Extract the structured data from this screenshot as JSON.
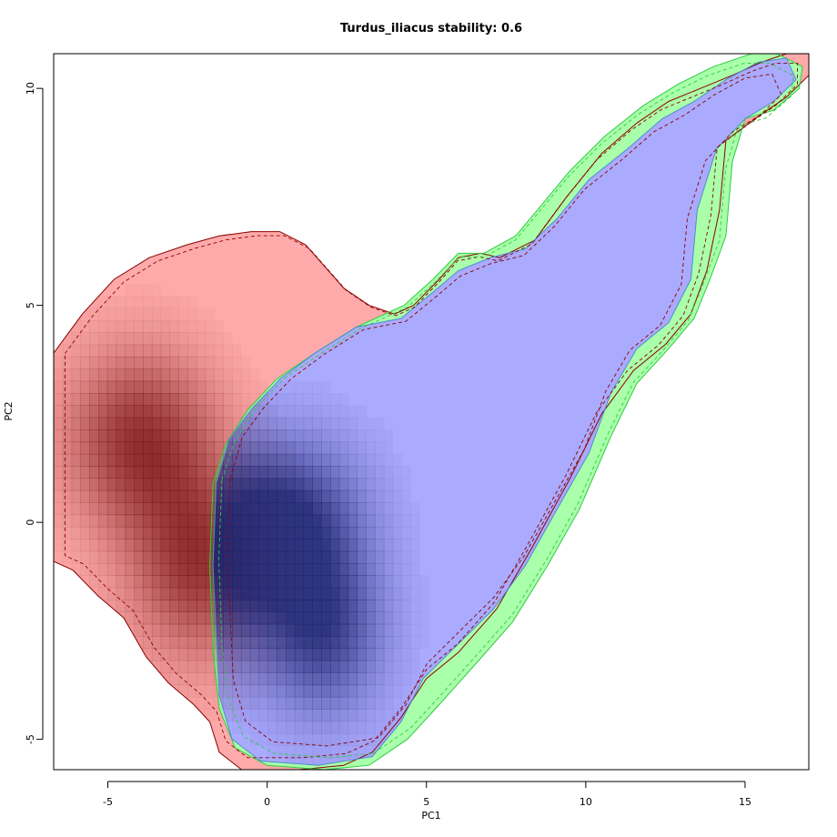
{
  "chart_data": {
    "type": "area",
    "title": "Turdus_iliacus stability: 0.6",
    "xlabel": "PC1",
    "ylabel": "PC2",
    "xlim": [
      -6.7,
      17.0
    ],
    "ylim": [
      -5.7,
      10.8
    ],
    "xticks": [
      -5,
      0,
      5,
      10,
      15
    ],
    "yticks": [
      -5,
      0,
      5,
      10
    ],
    "colors": {
      "region_a": "#ffaaaa",
      "region_b": "#aaffaa",
      "overlap": "#aaaaff",
      "density_a": "#7a1414",
      "density_b": "#1e246e",
      "contour_a": "#8b0000",
      "contour_b": "#2ecc40",
      "contour_overlap": "#4a90c8"
    },
    "series": [
      {
        "role": "region_a",
        "polygon": [
          [
            -6.7,
            3.9
          ],
          [
            -5.8,
            4.8
          ],
          [
            -4.8,
            5.6
          ],
          [
            -3.7,
            6.1
          ],
          [
            -2.5,
            6.4
          ],
          [
            -1.5,
            6.6
          ],
          [
            -0.5,
            6.7
          ],
          [
            0.4,
            6.7
          ],
          [
            1.2,
            6.4
          ],
          [
            1.8,
            5.9
          ],
          [
            2.4,
            5.4
          ],
          [
            3.2,
            5.0
          ],
          [
            4.0,
            4.8
          ],
          [
            4.6,
            5.0
          ],
          [
            5.4,
            5.6
          ],
          [
            6.0,
            6.1
          ],
          [
            6.7,
            6.2
          ],
          [
            7.3,
            6.1
          ],
          [
            8.4,
            6.5
          ],
          [
            9.4,
            7.5
          ],
          [
            10.5,
            8.5
          ],
          [
            11.6,
            9.2
          ],
          [
            12.6,
            9.7
          ],
          [
            13.6,
            10.0
          ],
          [
            14.6,
            10.3
          ],
          [
            15.5,
            10.6
          ],
          [
            16.3,
            10.8
          ],
          [
            17.0,
            10.8
          ],
          [
            17.0,
            10.3
          ],
          [
            16.3,
            9.8
          ],
          [
            15.5,
            9.4
          ],
          [
            14.4,
            8.8
          ],
          [
            14.2,
            7.2
          ],
          [
            13.8,
            5.8
          ],
          [
            13.3,
            4.8
          ],
          [
            12.5,
            4.1
          ],
          [
            11.5,
            3.5
          ],
          [
            10.5,
            2.5
          ],
          [
            9.5,
            1.0
          ],
          [
            8.3,
            -0.6
          ],
          [
            7.2,
            -2.0
          ],
          [
            6.0,
            -3.0
          ],
          [
            5.0,
            -3.6
          ],
          [
            4.2,
            -4.5
          ],
          [
            3.3,
            -5.3
          ],
          [
            2.4,
            -5.6
          ],
          [
            1.0,
            -5.7
          ],
          [
            -0.8,
            -5.7
          ],
          [
            -1.5,
            -5.3
          ],
          [
            -1.8,
            -4.6
          ],
          [
            -2.3,
            -4.2
          ],
          [
            -3.1,
            -3.7
          ],
          [
            -3.8,
            -3.1
          ],
          [
            -4.5,
            -2.2
          ],
          [
            -5.3,
            -1.7
          ],
          [
            -6.1,
            -1.1
          ],
          [
            -6.7,
            -0.9
          ]
        ]
      },
      {
        "role": "region_b",
        "polygon": [
          [
            -1.7,
            0.9
          ],
          [
            -1.3,
            1.8
          ],
          [
            -0.6,
            2.6
          ],
          [
            0.3,
            3.3
          ],
          [
            1.5,
            3.9
          ],
          [
            2.8,
            4.5
          ],
          [
            4.3,
            5.0
          ],
          [
            5.2,
            5.6
          ],
          [
            6.0,
            6.2
          ],
          [
            6.8,
            6.2
          ],
          [
            7.8,
            6.6
          ],
          [
            8.6,
            7.3
          ],
          [
            9.5,
            8.1
          ],
          [
            10.6,
            8.9
          ],
          [
            11.8,
            9.6
          ],
          [
            12.9,
            10.1
          ],
          [
            14.0,
            10.5
          ],
          [
            15.2,
            10.8
          ],
          [
            16.0,
            10.8
          ],
          [
            16.8,
            10.5
          ],
          [
            16.7,
            10.0
          ],
          [
            15.9,
            9.5
          ],
          [
            15.0,
            9.3
          ],
          [
            14.6,
            8.3
          ],
          [
            14.4,
            6.6
          ],
          [
            13.9,
            5.6
          ],
          [
            13.4,
            4.7
          ],
          [
            12.6,
            4.0
          ],
          [
            11.6,
            3.2
          ],
          [
            10.8,
            2.0
          ],
          [
            9.8,
            0.3
          ],
          [
            8.8,
            -1.0
          ],
          [
            7.7,
            -2.3
          ],
          [
            6.5,
            -3.3
          ],
          [
            5.4,
            -4.2
          ],
          [
            4.4,
            -5.0
          ],
          [
            3.2,
            -5.6
          ],
          [
            1.8,
            -5.7
          ],
          [
            0.0,
            -5.6
          ],
          [
            -1.0,
            -5.2
          ],
          [
            -1.5,
            -4.3
          ],
          [
            -1.7,
            -3.0
          ],
          [
            -1.8,
            -1.0
          ]
        ]
      },
      {
        "role": "overlap",
        "polygon": [
          [
            -1.6,
            0.9
          ],
          [
            -1.2,
            1.9
          ],
          [
            -0.5,
            2.6
          ],
          [
            0.4,
            3.3
          ],
          [
            1.5,
            3.9
          ],
          [
            2.8,
            4.5
          ],
          [
            4.2,
            4.7
          ],
          [
            5.2,
            5.3
          ],
          [
            6.0,
            5.8
          ],
          [
            7.0,
            6.1
          ],
          [
            8.1,
            6.3
          ],
          [
            9.1,
            7.0
          ],
          [
            10.1,
            7.9
          ],
          [
            11.3,
            8.6
          ],
          [
            12.4,
            9.3
          ],
          [
            13.4,
            9.7
          ],
          [
            14.4,
            10.2
          ],
          [
            15.4,
            10.6
          ],
          [
            16.3,
            10.7
          ],
          [
            16.6,
            10.2
          ],
          [
            15.9,
            9.7
          ],
          [
            15.0,
            9.3
          ],
          [
            14.1,
            8.6
          ],
          [
            13.5,
            7.2
          ],
          [
            13.3,
            5.6
          ],
          [
            12.6,
            4.6
          ],
          [
            11.6,
            4.0
          ],
          [
            10.8,
            3.0
          ],
          [
            10.1,
            1.6
          ],
          [
            9.1,
            0.3
          ],
          [
            8.1,
            -1.0
          ],
          [
            7.1,
            -2.0
          ],
          [
            6.0,
            -2.8
          ],
          [
            4.9,
            -3.6
          ],
          [
            4.2,
            -4.6
          ],
          [
            3.3,
            -5.4
          ],
          [
            1.6,
            -5.6
          ],
          [
            -0.2,
            -5.5
          ],
          [
            -1.1,
            -5.0
          ],
          [
            -1.5,
            -4.0
          ],
          [
            -1.6,
            -2.6
          ],
          [
            -1.7,
            -1.0
          ]
        ]
      }
    ],
    "density_peaks": [
      {
        "role": "region_a",
        "x": -4.0,
        "y": 1.9,
        "sx": 1.6,
        "sy": 1.4
      },
      {
        "role": "region_a",
        "x": -2.1,
        "y": -0.9,
        "sx": 1.5,
        "sy": 1.5
      },
      {
        "role": "overlap",
        "x": -1.2,
        "y": -0.7,
        "sx": 1.3,
        "sy": 1.5
      },
      {
        "role": "overlap",
        "x": 0.9,
        "y": 0.0,
        "sx": 1.5,
        "sy": 1.3
      },
      {
        "role": "overlap",
        "x": 1.7,
        "y": -2.5,
        "sx": 1.3,
        "sy": 1.3
      }
    ]
  }
}
